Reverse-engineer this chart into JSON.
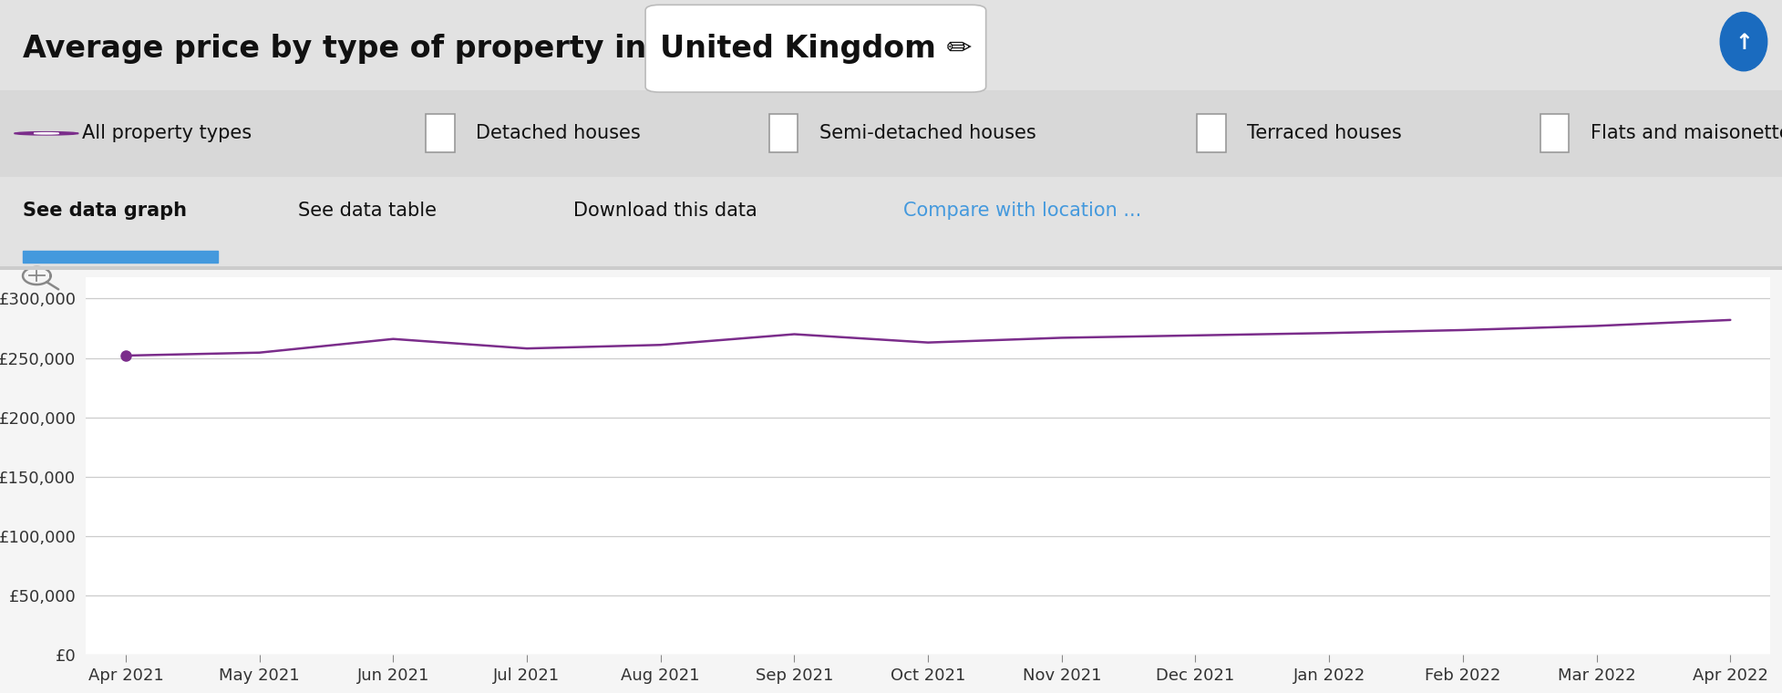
{
  "title_part1": "Average price by type of property in ",
  "title_part2": "United Kingdom ✏",
  "background_color": "#e2e2e2",
  "chart_area_color": "#f0f0f0",
  "chart_background": "#ffffff",
  "line_color": "#7b2d8b",
  "line_width": 1.8,
  "marker_color": "#7b2d8b",
  "x_labels": [
    "Apr 2021",
    "May 2021",
    "Jun 2021",
    "Jul 2021",
    "Aug 2021",
    "Sep 2021",
    "Oct 2021",
    "Nov 2021",
    "Dec 2021",
    "Jan 2022",
    "Feb 2022",
    "Mar 2022",
    "Apr 2022"
  ],
  "y_values": [
    252000,
    254500,
    266000,
    258000,
    261000,
    270000,
    263000,
    267000,
    269000,
    271000,
    273500,
    277000,
    282000
  ],
  "y_ticks": [
    0,
    50000,
    100000,
    150000,
    200000,
    250000,
    300000
  ],
  "y_tick_labels": [
    "£0",
    "£50,000",
    "£100,000",
    "£150,000",
    "£200,000",
    "£250,000",
    "£300,000"
  ],
  "ylim": [
    0,
    318000
  ],
  "legend_items": [
    {
      "label": "All property types",
      "color": "#7b2d8b",
      "filled": true
    },
    {
      "label": "Detached houses",
      "color": "#aaaaaa",
      "filled": false
    },
    {
      "label": "Semi-detached houses",
      "color": "#aaaaaa",
      "filled": false
    },
    {
      "label": "Terraced houses",
      "color": "#aaaaaa",
      "filled": false
    },
    {
      "label": "Flats and maisonettes",
      "color": "#aaaaaa",
      "filled": false
    }
  ],
  "tab_labels": [
    "See data graph",
    "See data table",
    "Download this data",
    "Compare with location ..."
  ],
  "tab_colors": [
    "#111111",
    "#111111",
    "#111111",
    "#4499dd"
  ],
  "active_tab_underline": "#4499dd",
  "grid_color": "#cccccc",
  "axis_label_color": "#333333",
  "font_size_title": 24,
  "font_size_legend": 15,
  "font_size_tabs": 15,
  "font_size_ticks": 13,
  "up_arrow_color": "#1a6bbf",
  "zoom_icon_color": "#888888",
  "separator_color": "#cccccc"
}
